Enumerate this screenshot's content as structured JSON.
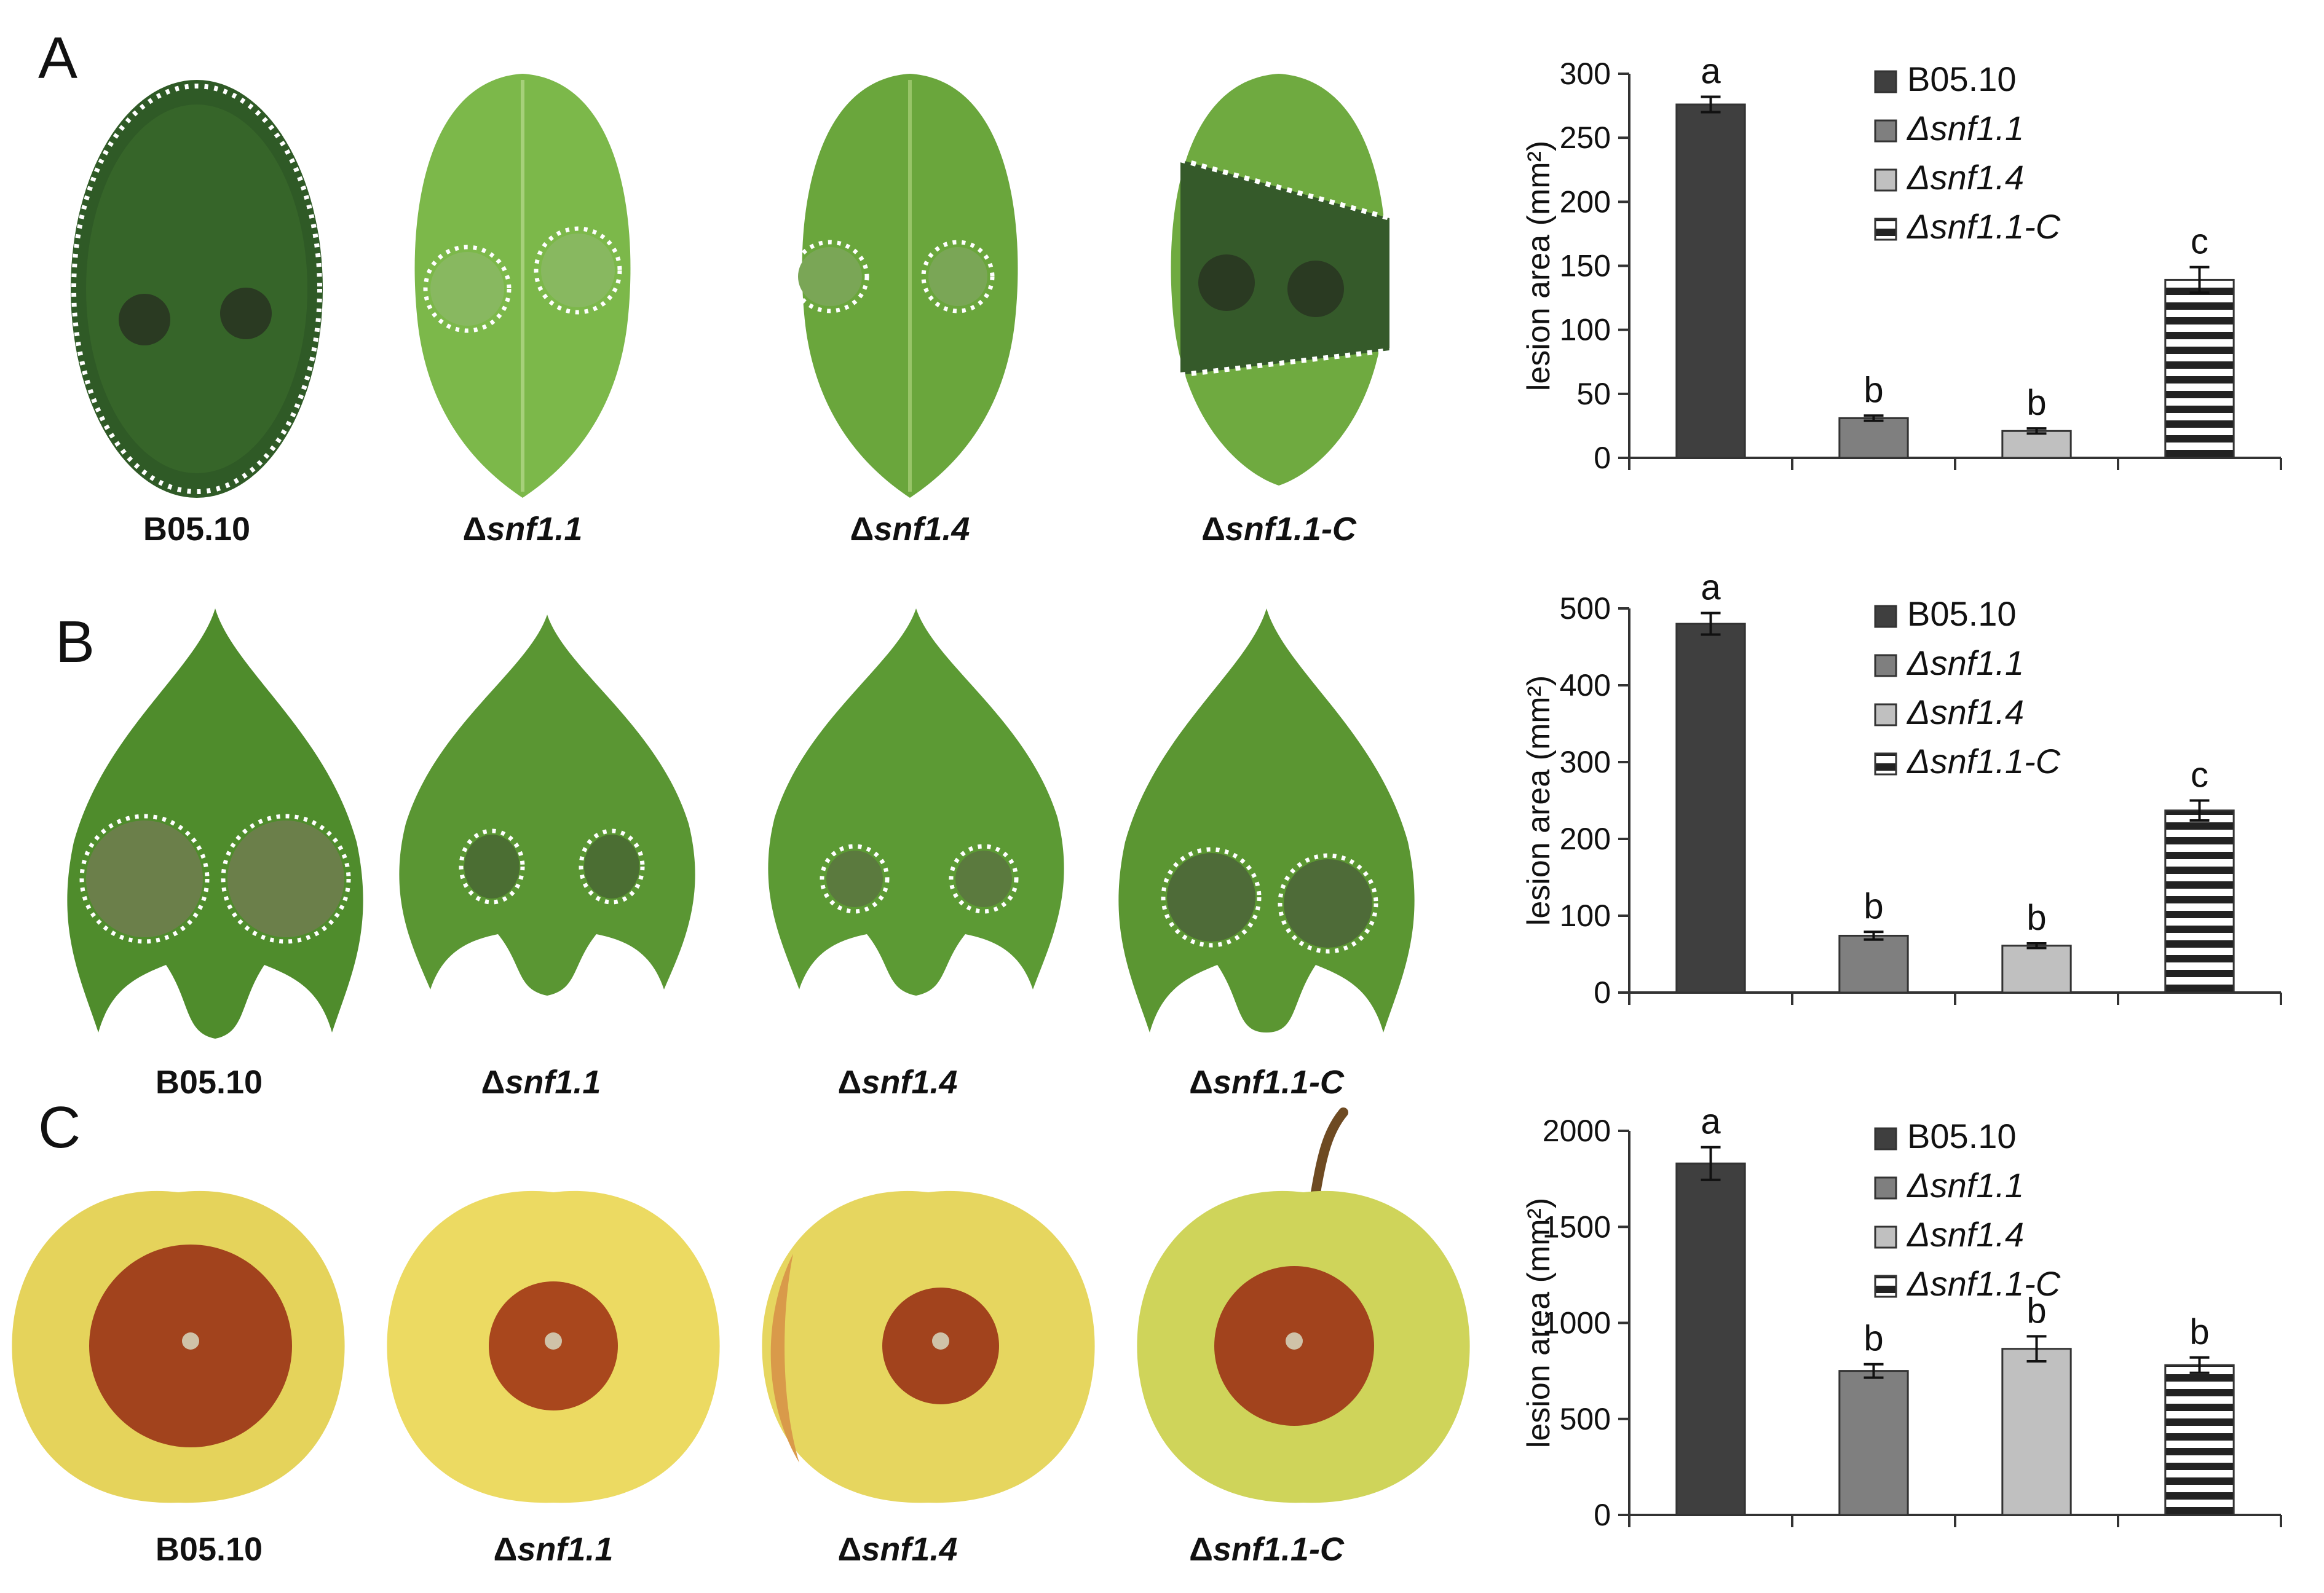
{
  "panels": [
    {
      "letter": "A",
      "specimen": "leaf",
      "captions": [
        {
          "delta": "",
          "name": "B05.10",
          "italic": false
        },
        {
          "delta": "Δ",
          "name": "snf1.1",
          "italic": true
        },
        {
          "delta": "Δ",
          "name": "snf1.4",
          "italic": true
        },
        {
          "delta": "Δ",
          "name": "snf1.1-C",
          "italic": true
        }
      ]
    },
    {
      "letter": "B",
      "specimen": "bean-leaf",
      "captions": [
        {
          "delta": "",
          "name": "B05.10",
          "italic": false
        },
        {
          "delta": "Δ",
          "name": "snf1.1",
          "italic": true
        },
        {
          "delta": "Δ",
          "name": "snf1.4",
          "italic": true
        },
        {
          "delta": "Δ",
          "name": "snf1.1-C",
          "italic": true
        }
      ]
    },
    {
      "letter": "C",
      "specimen": "apple",
      "captions": [
        {
          "delta": "",
          "name": "B05.10",
          "italic": false
        },
        {
          "delta": "Δ",
          "name": "snf1.1",
          "italic": true
        },
        {
          "delta": "Δ",
          "name": "snf1.4",
          "italic": true
        },
        {
          "delta": "Δ",
          "name": "snf1.1-C",
          "italic": true
        }
      ]
    }
  ],
  "colors": {
    "leaf_green": "#5f9e33",
    "leaf_dark": "#3f7a22",
    "lesion_dark": "#2e4a22",
    "apple_yellow": "#e6d35a",
    "apple_rot": "#a2431d",
    "bar_b0510": "#3f3f3f",
    "bar_snf11": "#7f7f7f",
    "bar_snf14": "#c0c0c0",
    "bar_stripe": "#222222"
  },
  "chart_data": [
    {
      "type": "bar",
      "ylabel": "lesion area (mm²)",
      "ylim": [
        0,
        300
      ],
      "yticks": [
        0,
        50,
        100,
        150,
        200,
        250,
        300
      ],
      "legend": [
        "B05.10",
        "Δsnf1.1",
        "Δsnf1.4",
        "Δsnf1.1-C"
      ],
      "legend_italic": [
        false,
        true,
        true,
        true
      ],
      "legend_position": "top-right",
      "values": [
        276,
        31,
        21,
        139
      ],
      "errors": [
        6,
        2,
        2,
        10
      ],
      "letters": [
        "a",
        "b",
        "b",
        "c"
      ]
    },
    {
      "type": "bar",
      "ylabel": "lesion area (mm²)",
      "ylim": [
        0,
        500
      ],
      "yticks": [
        0,
        100,
        200,
        300,
        400,
        500
      ],
      "legend": [
        "B05.10",
        "Δsnf1.1",
        "Δsnf1.4",
        "Δsnf1.1-C"
      ],
      "legend_italic": [
        false,
        true,
        true,
        true
      ],
      "legend_position": "top-right",
      "values": [
        480,
        74,
        61,
        237
      ],
      "errors": [
        14,
        5,
        3,
        13
      ],
      "letters": [
        "a",
        "b",
        "b",
        "c"
      ]
    },
    {
      "type": "bar",
      "ylabel": "lesion area (mm²)",
      "ylim": [
        0,
        2000
      ],
      "yticks": [
        0,
        500,
        1000,
        1500,
        2000
      ],
      "legend": [
        "B05.10",
        "Δsnf1.1",
        "Δsnf1.4",
        "Δsnf1.1-C"
      ],
      "legend_italic": [
        false,
        true,
        true,
        true
      ],
      "legend_position": "top-right",
      "values": [
        1830,
        750,
        865,
        780
      ],
      "errors": [
        85,
        35,
        65,
        40
      ],
      "letters": [
        "a",
        "b",
        "b",
        "b"
      ]
    }
  ]
}
